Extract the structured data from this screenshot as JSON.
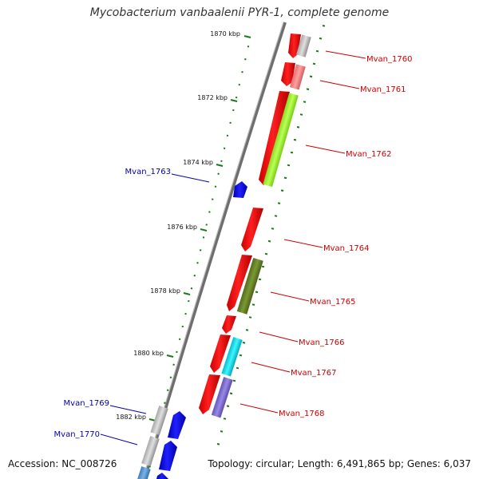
{
  "title": "Mycobacterium vanbaalenii PYR-1, complete genome",
  "footer": {
    "accession": "Accession: NC_008726",
    "topology": "Topology: circular; Length: 6,491,865 bp; Genes: 6,037"
  },
  "kbp_ticks": [
    {
      "label": "1870 kbp",
      "kbp": 1870
    },
    {
      "label": "1872 kbp",
      "kbp": 1872
    },
    {
      "label": "1874 kbp",
      "kbp": 1874
    },
    {
      "label": "1876 kbp",
      "kbp": 1876
    },
    {
      "label": "1878 kbp",
      "kbp": 1878
    },
    {
      "label": "1880 kbp",
      "kbp": 1880
    },
    {
      "label": "1882 kbp",
      "kbp": 1882
    }
  ],
  "genes": [
    {
      "name": "Mvan_1760",
      "strand": "plus",
      "color": "#cc0000"
    },
    {
      "name": "Mvan_1761",
      "strand": "plus",
      "color": "#cc0000"
    },
    {
      "name": "Mvan_1762",
      "strand": "plus",
      "color": "#cc0000"
    },
    {
      "name": "Mvan_1763",
      "strand": "minus",
      "color": "#0000aa"
    },
    {
      "name": "Mvan_1764",
      "strand": "plus",
      "color": "#cc0000"
    },
    {
      "name": "Mvan_1765",
      "strand": "plus",
      "color": "#cc0000"
    },
    {
      "name": "Mvan_1766",
      "strand": "plus",
      "color": "#cc0000"
    },
    {
      "name": "Mvan_1767",
      "strand": "plus",
      "color": "#cc0000"
    },
    {
      "name": "Mvan_1768",
      "strand": "plus",
      "color": "#cc0000"
    },
    {
      "name": "Mvan_1769",
      "strand": "minus",
      "color": "#0000aa"
    },
    {
      "name": "Mvan_1770",
      "strand": "minus",
      "color": "#0000aa"
    }
  ],
  "feature_colors": {
    "cds_plus": "#ff0000",
    "cds_minus": "#0000ff",
    "backbone": "#888888",
    "tick": "#1a7a1a"
  }
}
